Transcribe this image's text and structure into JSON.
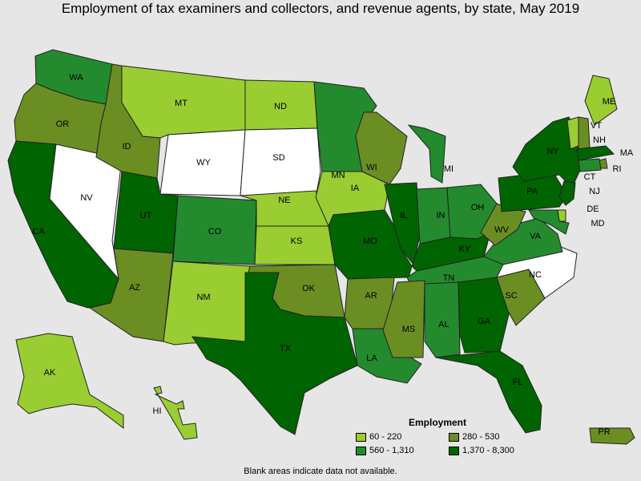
{
  "title": "Employment of tax examiners and collectors, and revenue agents, by state, May 2019",
  "colors": {
    "c1": "#9acd32",
    "c2": "#6b8e23",
    "c3": "#238b2e",
    "c4": "#006400",
    "na": "#ffffff",
    "border": "#222222",
    "background": "#e6e6e6"
  },
  "legend": {
    "title": "Employment",
    "items": [
      {
        "label": "60 - 220",
        "color": "#9acd32"
      },
      {
        "label": "280 - 530",
        "color": "#6b8e23"
      },
      {
        "label": "560 - 1,310",
        "color": "#238b2e"
      },
      {
        "label": "1,370 - 8,300",
        "color": "#006400"
      }
    ]
  },
  "footnote": "Blank areas indicate data not available.",
  "states": [
    {
      "abbr": "WA",
      "bin": "c3"
    },
    {
      "abbr": "OR",
      "bin": "c2"
    },
    {
      "abbr": "CA",
      "bin": "c4"
    },
    {
      "abbr": "NV",
      "bin": "na"
    },
    {
      "abbr": "ID",
      "bin": "c2"
    },
    {
      "abbr": "MT",
      "bin": "c1"
    },
    {
      "abbr": "WY",
      "bin": "na"
    },
    {
      "abbr": "UT",
      "bin": "c4"
    },
    {
      "abbr": "AZ",
      "bin": "c2"
    },
    {
      "abbr": "CO",
      "bin": "c3"
    },
    {
      "abbr": "NM",
      "bin": "c1"
    },
    {
      "abbr": "ND",
      "bin": "c1"
    },
    {
      "abbr": "SD",
      "bin": "na"
    },
    {
      "abbr": "NE",
      "bin": "c1"
    },
    {
      "abbr": "KS",
      "bin": "c1"
    },
    {
      "abbr": "OK",
      "bin": "c2"
    },
    {
      "abbr": "TX",
      "bin": "c4"
    },
    {
      "abbr": "MN",
      "bin": "c3"
    },
    {
      "abbr": "IA",
      "bin": "c1"
    },
    {
      "abbr": "MO",
      "bin": "c4"
    },
    {
      "abbr": "AR",
      "bin": "c2"
    },
    {
      "abbr": "LA",
      "bin": "c3"
    },
    {
      "abbr": "WI",
      "bin": "c2"
    },
    {
      "abbr": "IL",
      "bin": "c4"
    },
    {
      "abbr": "MI",
      "bin": "c3"
    },
    {
      "abbr": "IN",
      "bin": "c3"
    },
    {
      "abbr": "OH",
      "bin": "c3"
    },
    {
      "abbr": "KY",
      "bin": "c4"
    },
    {
      "abbr": "TN",
      "bin": "c3"
    },
    {
      "abbr": "MS",
      "bin": "c2"
    },
    {
      "abbr": "AL",
      "bin": "c3"
    },
    {
      "abbr": "GA",
      "bin": "c4"
    },
    {
      "abbr": "FL",
      "bin": "c4"
    },
    {
      "abbr": "SC",
      "bin": "c2"
    },
    {
      "abbr": "NC",
      "bin": "na"
    },
    {
      "abbr": "VA",
      "bin": "c3"
    },
    {
      "abbr": "WV",
      "bin": "c2"
    },
    {
      "abbr": "PA",
      "bin": "c4"
    },
    {
      "abbr": "NY",
      "bin": "c4"
    },
    {
      "abbr": "ME",
      "bin": "c1"
    },
    {
      "abbr": "VT",
      "bin": "c1"
    },
    {
      "abbr": "NH",
      "bin": "c2"
    },
    {
      "abbr": "MA",
      "bin": "c4"
    },
    {
      "abbr": "RI",
      "bin": "c2"
    },
    {
      "abbr": "CT",
      "bin": "c3"
    },
    {
      "abbr": "NJ",
      "bin": "c4"
    },
    {
      "abbr": "DE",
      "bin": "c1"
    },
    {
      "abbr": "MD",
      "bin": "c3"
    },
    {
      "abbr": "AK",
      "bin": "c1"
    },
    {
      "abbr": "HI",
      "bin": "c1"
    },
    {
      "abbr": "PR",
      "bin": "c2"
    }
  ]
}
